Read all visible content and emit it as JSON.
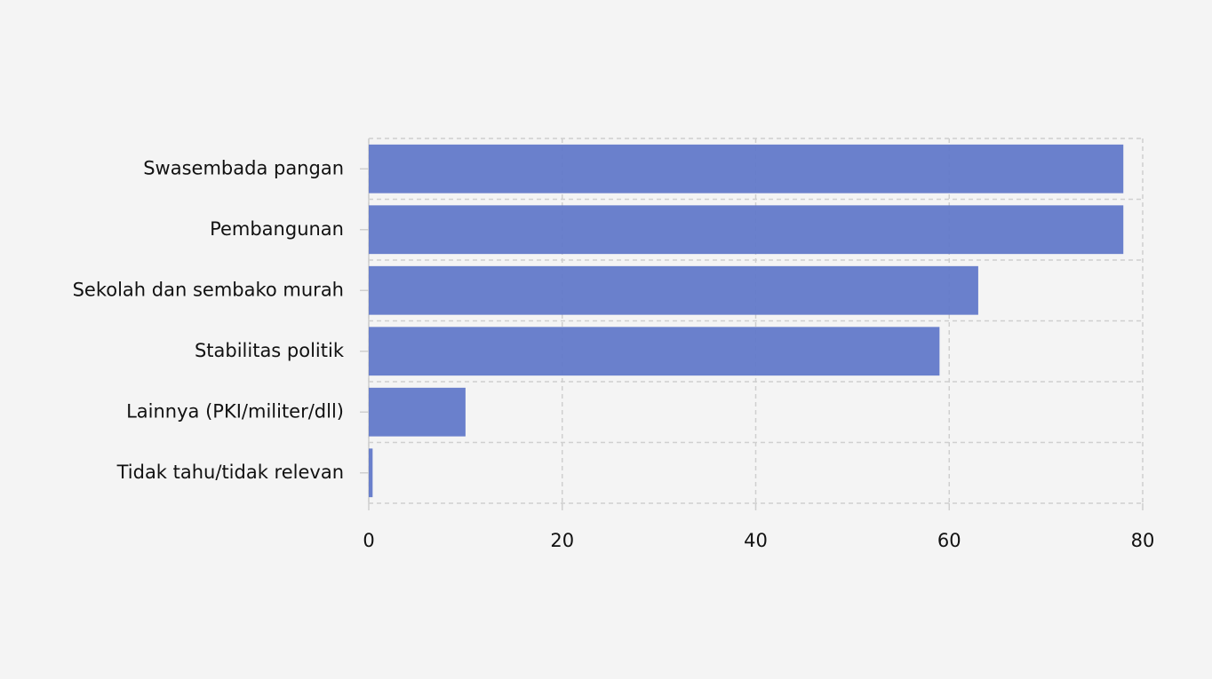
{
  "chart_data": {
    "type": "bar",
    "orientation": "horizontal",
    "categories": [
      "Swasembada pangan",
      "Pembangunan",
      "Sekolah dan sembako murah",
      "Stabilitas politik",
      "Lainnya (PKI/militer/dll)",
      "Tidak tahu/tidak relevan"
    ],
    "values": [
      78,
      78,
      63,
      59,
      10,
      0.4
    ],
    "color": "#6279c9",
    "xlim": [
      0,
      80
    ],
    "xticks": [
      0,
      20,
      40,
      60,
      80
    ],
    "grid": true
  }
}
